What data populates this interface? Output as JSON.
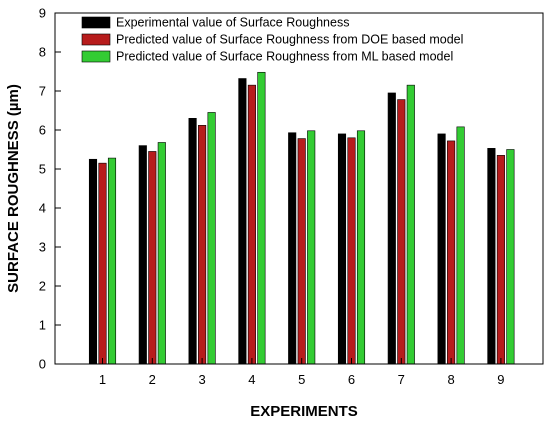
{
  "chart_data": {
    "type": "bar",
    "title": "",
    "xlabel": "EXPERIMENTS",
    "ylabel": "SURFACE ROUGHNESS (µm)",
    "ylim": [
      0,
      9
    ],
    "yticks": [
      0,
      1,
      2,
      3,
      4,
      5,
      6,
      7,
      8,
      9
    ],
    "categories": [
      "1",
      "2",
      "3",
      "4",
      "5",
      "6",
      "7",
      "8",
      "9"
    ],
    "grid": false,
    "legend_position": "top-left",
    "series": [
      {
        "name": "Experimental value of Surface Roughness",
        "color": "#000000",
        "values": [
          5.25,
          5.6,
          6.3,
          7.32,
          5.93,
          5.9,
          6.95,
          5.9,
          5.53
        ]
      },
      {
        "name": "Predicted value of Surface Roughness from DOE based model",
        "color": "#b71c1c",
        "values": [
          5.15,
          5.45,
          6.12,
          7.15,
          5.78,
          5.8,
          6.78,
          5.72,
          5.35
        ]
      },
      {
        "name": "Predicted value of Surface Roughness from ML based model",
        "color": "#33cc33",
        "values": [
          5.28,
          5.68,
          6.45,
          7.48,
          5.98,
          5.98,
          7.15,
          6.08,
          5.5
        ]
      }
    ]
  }
}
